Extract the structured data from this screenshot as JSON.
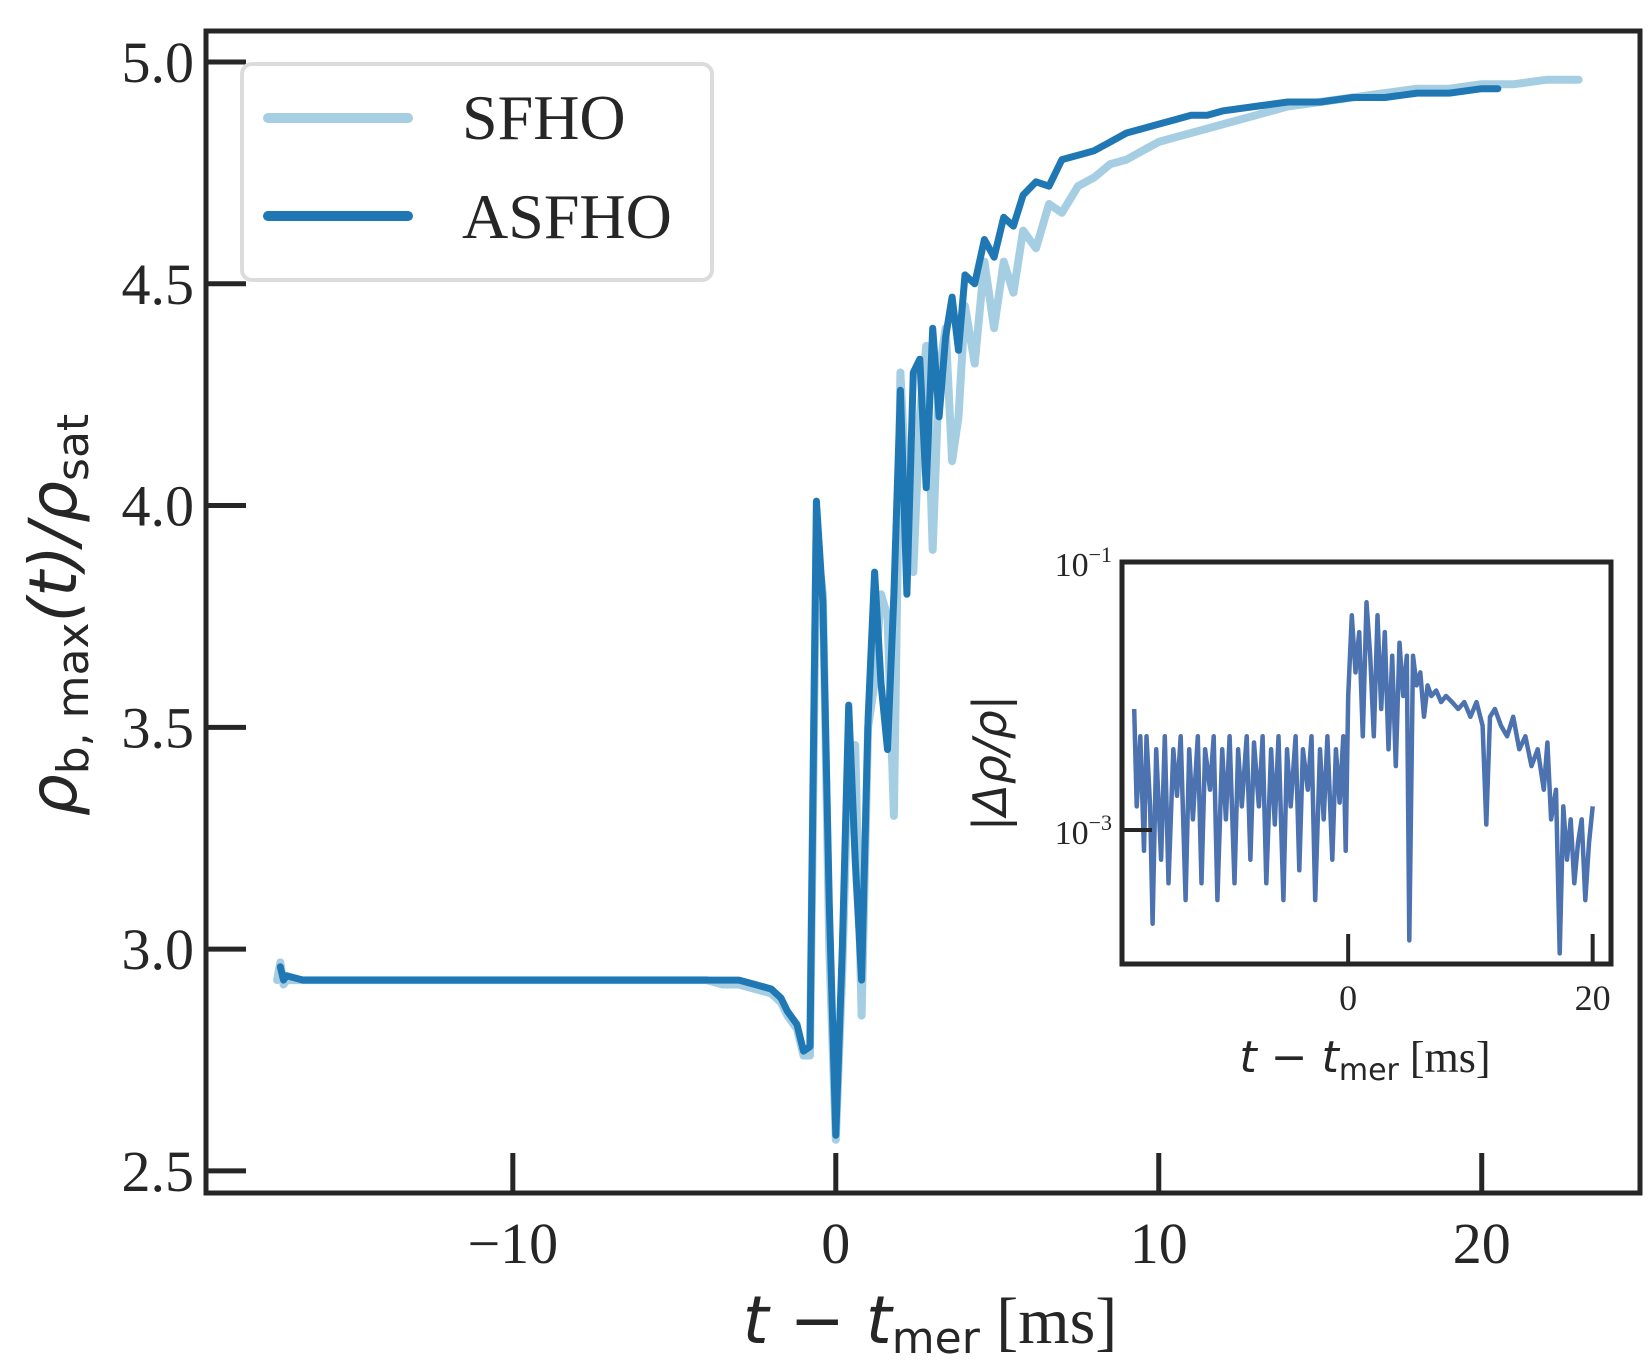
{
  "chart_data": [
    {
      "type": "line",
      "xlabel": {
        "var": "t",
        "minus": " − ",
        "var2": "t",
        "sub": "mer",
        "unit": " [ms]"
      },
      "ylabel": {
        "rho": "ρ",
        "sub": "b, max",
        "mid": "(t)/",
        "rho2": "ρ",
        "sub2": "sat"
      },
      "xlim": [
        -19.5,
        24.9
      ],
      "ylim": [
        2.45,
        5.07
      ],
      "xticks": [
        -10,
        0,
        10,
        20
      ],
      "xtick_labels": [
        "−10",
        "0",
        "10",
        "20"
      ],
      "yticks": [
        2.5,
        3.0,
        3.5,
        4.0,
        4.5,
        5.0
      ],
      "ytick_labels": [
        "2.5",
        "3.0",
        "3.5",
        "4.0",
        "4.5",
        "5.0"
      ],
      "legend": {
        "position": "top-left",
        "entries": [
          "SFHO",
          "ASFHO"
        ]
      },
      "series": [
        {
          "name": "SFHO",
          "color": "#a6cee3",
          "x": [
            -17.3,
            -17.2,
            -17.1,
            -17.0,
            -16.5,
            -16.0,
            -15.0,
            -14.0,
            -13.0,
            -12.0,
            -11.0,
            -10.0,
            -9.0,
            -8.0,
            -7.0,
            -6.0,
            -5.0,
            -4.0,
            -3.5,
            -3.0,
            -2.5,
            -2.0,
            -1.7,
            -1.5,
            -1.2,
            -1.0,
            -0.8,
            -0.6,
            -0.4,
            -0.2,
            0.0,
            0.2,
            0.4,
            0.6,
            0.8,
            1.0,
            1.2,
            1.4,
            1.6,
            1.8,
            2.0,
            2.2,
            2.4,
            2.6,
            2.8,
            3.0,
            3.2,
            3.4,
            3.6,
            3.8,
            4.0,
            4.3,
            4.6,
            4.9,
            5.2,
            5.5,
            5.8,
            6.2,
            6.6,
            7.0,
            7.5,
            8.0,
            8.5,
            9.0,
            9.5,
            10.0,
            10.5,
            11.0,
            11.5,
            12.0,
            13.0,
            14.0,
            15.0,
            16.0,
            17.0,
            18.0,
            19.0,
            20.0,
            21.0,
            22.0,
            23.0
          ],
          "y": [
            2.93,
            2.97,
            2.92,
            2.93,
            2.93,
            2.93,
            2.93,
            2.93,
            2.93,
            2.93,
            2.93,
            2.93,
            2.93,
            2.93,
            2.93,
            2.93,
            2.93,
            2.93,
            2.92,
            2.92,
            2.91,
            2.9,
            2.88,
            2.85,
            2.82,
            2.76,
            2.76,
            3.92,
            3.8,
            3.0,
            2.57,
            2.95,
            3.45,
            3.46,
            2.85,
            3.5,
            3.6,
            3.8,
            3.75,
            3.3,
            4.3,
            4.0,
            3.85,
            4.2,
            4.36,
            3.9,
            4.3,
            4.4,
            4.1,
            4.2,
            4.45,
            4.32,
            4.55,
            4.4,
            4.55,
            4.48,
            4.62,
            4.58,
            4.68,
            4.66,
            4.72,
            4.74,
            4.77,
            4.78,
            4.8,
            4.82,
            4.83,
            4.84,
            4.85,
            4.86,
            4.88,
            4.9,
            4.91,
            4.92,
            4.93,
            4.94,
            4.94,
            4.95,
            4.95,
            4.96,
            4.96
          ]
        },
        {
          "name": "ASFHO",
          "color": "#1f78b4",
          "x": [
            -17.2,
            -17.1,
            -17.0,
            -16.5,
            -16.0,
            -15.0,
            -14.0,
            -13.0,
            -12.0,
            -11.0,
            -10.0,
            -9.0,
            -8.0,
            -7.0,
            -6.0,
            -5.0,
            -4.0,
            -3.5,
            -3.0,
            -2.5,
            -2.0,
            -1.7,
            -1.5,
            -1.2,
            -1.0,
            -0.8,
            -0.6,
            -0.4,
            -0.2,
            0.0,
            0.2,
            0.4,
            0.6,
            0.8,
            1.0,
            1.2,
            1.4,
            1.6,
            1.8,
            2.0,
            2.2,
            2.4,
            2.6,
            2.8,
            3.0,
            3.2,
            3.4,
            3.6,
            3.8,
            4.0,
            4.3,
            4.6,
            4.9,
            5.2,
            5.5,
            5.8,
            6.2,
            6.6,
            7.0,
            7.5,
            8.0,
            8.5,
            9.0,
            9.5,
            10.0,
            10.5,
            11.0,
            11.5,
            12.0,
            13.0,
            14.0,
            15.0,
            16.0,
            17.0,
            18.0,
            19.0,
            20.0,
            20.5
          ],
          "y": [
            2.96,
            2.93,
            2.94,
            2.93,
            2.93,
            2.93,
            2.93,
            2.93,
            2.93,
            2.93,
            2.93,
            2.93,
            2.93,
            2.93,
            2.93,
            2.93,
            2.93,
            2.93,
            2.93,
            2.92,
            2.91,
            2.89,
            2.86,
            2.83,
            2.77,
            2.78,
            4.01,
            3.78,
            3.1,
            2.58,
            3.0,
            3.55,
            3.2,
            2.93,
            3.52,
            3.85,
            3.6,
            3.45,
            3.8,
            4.26,
            3.8,
            4.3,
            4.33,
            4.04,
            4.4,
            4.2,
            4.38,
            4.47,
            4.35,
            4.52,
            4.5,
            4.6,
            4.56,
            4.65,
            4.63,
            4.7,
            4.73,
            4.72,
            4.78,
            4.79,
            4.8,
            4.82,
            4.84,
            4.85,
            4.86,
            4.87,
            4.88,
            4.88,
            4.89,
            4.9,
            4.91,
            4.91,
            4.92,
            4.92,
            4.93,
            4.93,
            4.94,
            4.94
          ]
        }
      ]
    },
    {
      "type": "line",
      "role": "inset",
      "yscale": "log",
      "xlabel": {
        "var": "t",
        "minus": " − ",
        "var2": "t",
        "sub": "mer",
        "unit": " [ms]"
      },
      "ylabel": "|Δρ/ρ|",
      "xlim": [
        -18.5,
        21.5
      ],
      "ylim": [
        0.0001,
        0.1
      ],
      "xticks": [
        0,
        20
      ],
      "xtick_labels": [
        "0",
        "20"
      ],
      "yticks": [
        0.1,
        0.001
      ],
      "ytick_labels": [
        {
          "base": "10",
          "exp": "−1"
        },
        {
          "base": "10",
          "exp": "−3"
        }
      ],
      "series": [
        {
          "name": "|Δρ/ρ|",
          "color": "#4c72b0",
          "x": [
            -17.5,
            -17.3,
            -17.0,
            -16.7,
            -16.5,
            -16.2,
            -16.0,
            -15.7,
            -15.3,
            -15.0,
            -14.7,
            -14.3,
            -14.0,
            -13.7,
            -13.3,
            -13.0,
            -12.7,
            -12.3,
            -12.0,
            -11.7,
            -11.3,
            -11.0,
            -10.7,
            -10.3,
            -10.0,
            -9.7,
            -9.3,
            -9.0,
            -8.7,
            -8.3,
            -8.0,
            -7.7,
            -7.3,
            -7.0,
            -6.7,
            -6.3,
            -6.0,
            -5.7,
            -5.3,
            -5.0,
            -4.7,
            -4.3,
            -4.0,
            -3.7,
            -3.3,
            -3.0,
            -2.7,
            -2.3,
            -2.0,
            -1.7,
            -1.3,
            -1.0,
            -0.7,
            -0.4,
            -0.2,
            0.0,
            0.3,
            0.6,
            0.9,
            1.2,
            1.5,
            1.8,
            2.1,
            2.4,
            2.7,
            3.0,
            3.3,
            3.6,
            3.9,
            4.2,
            4.5,
            4.8,
            5.0,
            5.3,
            5.6,
            5.9,
            6.2,
            6.5,
            6.8,
            7.2,
            7.6,
            8.0,
            8.5,
            9.0,
            9.5,
            10.0,
            10.5,
            11.0,
            11.3,
            11.6,
            12.0,
            12.5,
            13.0,
            13.5,
            14.0,
            14.5,
            15.0,
            15.5,
            16.0,
            16.3,
            16.6,
            17.0,
            17.3,
            17.6,
            17.9,
            18.2,
            18.5,
            18.8,
            19.1,
            19.4,
            19.7,
            20.0
          ],
          "y": [
            0.008,
            0.0015,
            0.005,
            0.0007,
            0.005,
            0.0015,
            0.0002,
            0.004,
            0.0006,
            0.005,
            0.0004,
            0.004,
            0.0018,
            0.005,
            0.0003,
            0.004,
            0.0012,
            0.005,
            0.0004,
            0.004,
            0.002,
            0.005,
            0.0003,
            0.004,
            0.0012,
            0.005,
            0.0004,
            0.004,
            0.0015,
            0.005,
            0.0006,
            0.0045,
            0.0015,
            0.005,
            0.0004,
            0.004,
            0.0011,
            0.005,
            0.0003,
            0.004,
            0.0015,
            0.005,
            0.0005,
            0.004,
            0.002,
            0.005,
            0.0003,
            0.004,
            0.0012,
            0.005,
            0.0006,
            0.004,
            0.0016,
            0.005,
            0.0007,
            0.01,
            0.04,
            0.015,
            0.03,
            0.005,
            0.05,
            0.02,
            0.005,
            0.04,
            0.008,
            0.03,
            0.004,
            0.02,
            0.003,
            0.025,
            0.01,
            0.02,
            0.00015,
            0.02,
            0.012,
            0.015,
            0.007,
            0.012,
            0.01,
            0.011,
            0.009,
            0.01,
            0.009,
            0.008,
            0.009,
            0.007,
            0.009,
            0.006,
            0.0011,
            0.007,
            0.008,
            0.006,
            0.005,
            0.007,
            0.004,
            0.005,
            0.003,
            0.004,
            0.002,
            0.0045,
            0.0012,
            0.002,
            0.00012,
            0.0015,
            0.0006,
            0.0012,
            0.0004,
            0.0008,
            0.0012,
            0.0003,
            0.0008,
            0.0015
          ]
        }
      ]
    }
  ]
}
